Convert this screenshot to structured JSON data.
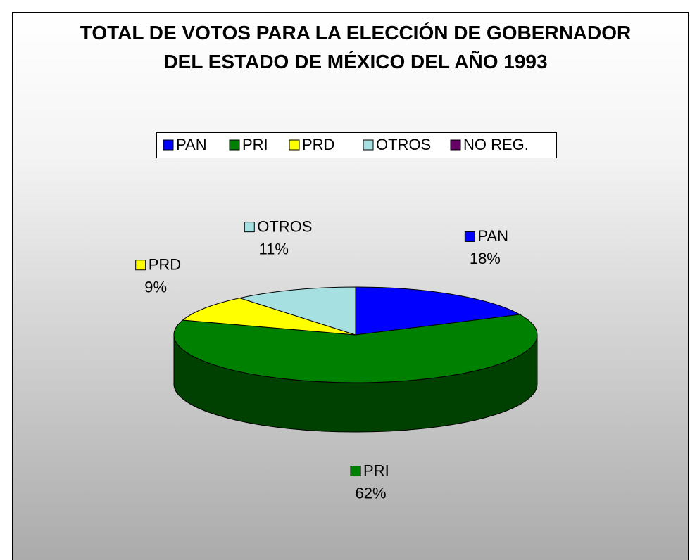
{
  "chart_data": {
    "type": "pie3d",
    "title": "TOTAL DE VOTOS PARA LA ELECCIÓN DE GOBERNADOR DEL ESTADO DE MÉXICO DEL AÑO 1993",
    "categories": [
      "PAN",
      "PRI",
      "PRD",
      "OTROS",
      "NO REG."
    ],
    "values": [
      18,
      62,
      9,
      11,
      0
    ],
    "value_labels": [
      "18%",
      "62%",
      "9%",
      "11%",
      null
    ],
    "colors": [
      "#0000ff",
      "#008000",
      "#ffff00",
      "#a6e0e0",
      "#660066"
    ],
    "legend": "top"
  }
}
